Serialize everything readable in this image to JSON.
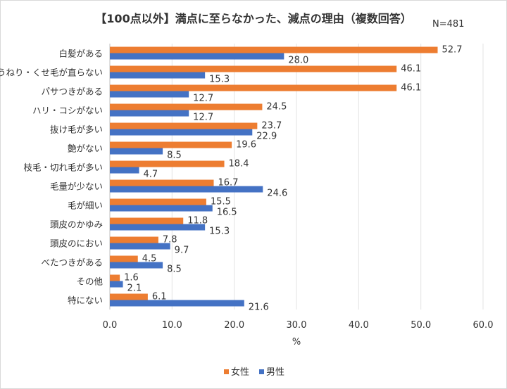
{
  "chart_data": {
    "type": "bar",
    "orientation": "horizontal",
    "title": "【100点以外】満点に至らなかった、減点の理由（複数回答）",
    "note": "N=481",
    "xlabel": "%",
    "xlim": [
      0,
      60
    ],
    "xticks": [
      "0.0",
      "10.0",
      "20.0",
      "30.0",
      "40.0",
      "50.0",
      "60.0"
    ],
    "grid": true,
    "legend_position": "bottom",
    "categories": [
      "白髪がある",
      "うねり・くせ毛が直らない",
      "パサつきがある",
      "ハリ・コシがない",
      "抜け毛が多い",
      "艶がない",
      "枝毛・切れ毛が多い",
      "毛量が少ない",
      "毛が細い",
      "頭皮のかゆみ",
      "頭皮のにおい",
      "べたつきがある",
      "その他",
      "特にない"
    ],
    "series": [
      {
        "name": "女性",
        "color": "#ED7D31",
        "values": [
          52.7,
          46.1,
          46.1,
          24.5,
          23.7,
          19.6,
          18.4,
          16.7,
          15.5,
          11.8,
          7.8,
          4.5,
          1.6,
          6.1
        ]
      },
      {
        "name": "男性",
        "color": "#4472C4",
        "values": [
          28.0,
          15.3,
          12.7,
          12.7,
          22.9,
          8.5,
          4.7,
          24.6,
          16.5,
          15.3,
          9.7,
          8.5,
          2.1,
          21.6
        ]
      }
    ]
  }
}
